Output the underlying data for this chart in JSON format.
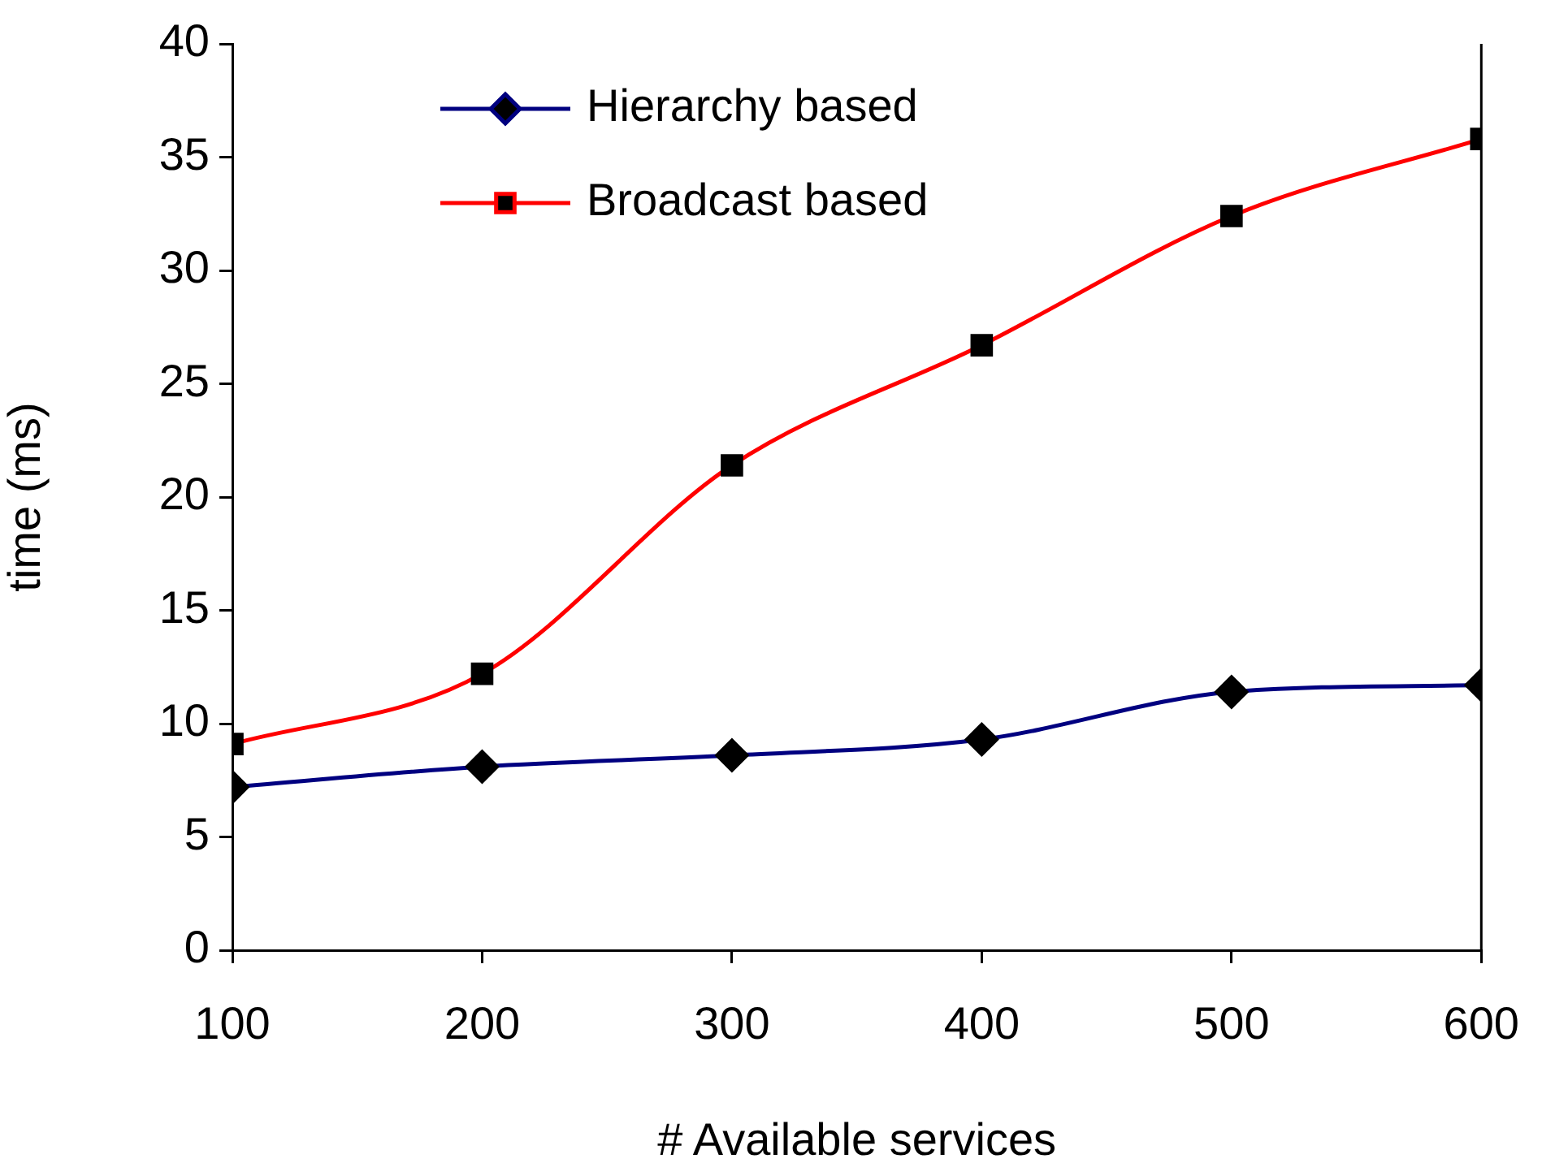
{
  "chart_data": {
    "type": "line",
    "xlabel": "# Available services",
    "ylabel": "time (ms)",
    "x": [
      100,
      200,
      300,
      400,
      500,
      600
    ],
    "xlim": [
      100,
      600
    ],
    "xticks": [
      100,
      200,
      300,
      400,
      500,
      600
    ],
    "ylim": [
      0,
      40
    ],
    "yticks": [
      0,
      5,
      10,
      15,
      20,
      25,
      30,
      35,
      40
    ],
    "grid": false,
    "legend": "top",
    "series": [
      {
        "name": "Hierarchy based",
        "color": "#000080",
        "marker": "diamond",
        "values": [
          7.2,
          8.1,
          8.6,
          9.3,
          11.4,
          11.7
        ]
      },
      {
        "name": "Broadcast based",
        "color": "#ff0000",
        "marker": "square",
        "values": [
          9.1,
          12.2,
          21.4,
          26.7,
          32.4,
          35.8
        ]
      }
    ]
  }
}
